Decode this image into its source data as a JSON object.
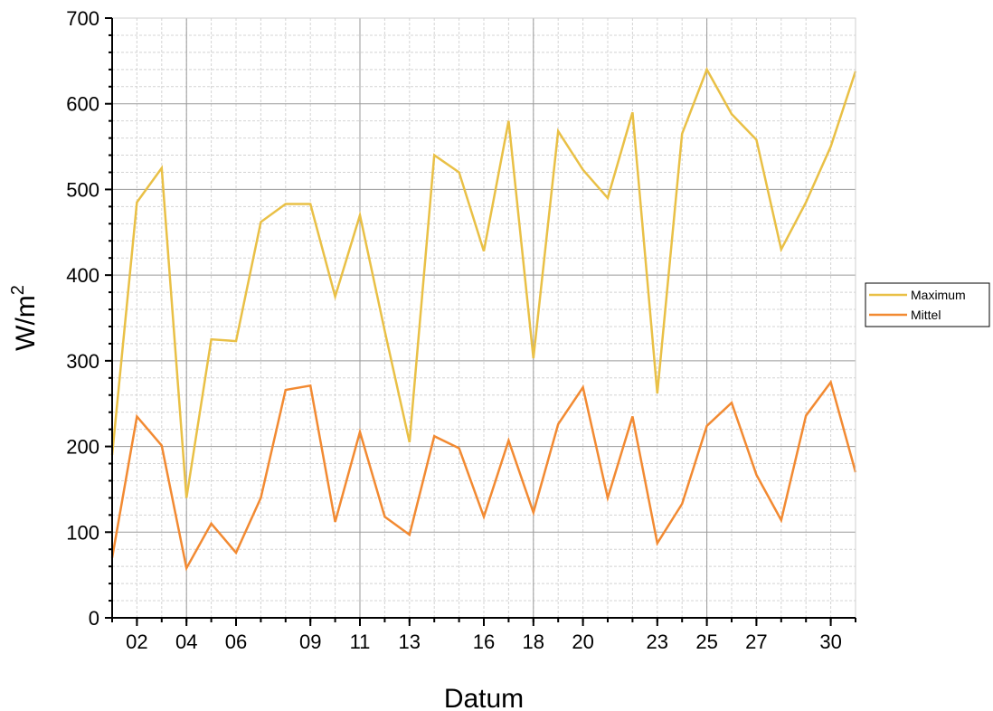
{
  "chart_data": {
    "type": "line",
    "title": "",
    "xlabel": "Datum",
    "ylabel": "W/m",
    "ylabel_superscript": "2",
    "ylim": [
      0,
      700
    ],
    "xlim": [
      1,
      31
    ],
    "yticks": [
      0,
      100,
      200,
      300,
      400,
      500,
      600,
      700
    ],
    "xticks": [
      {
        "x": 2,
        "label": "02"
      },
      {
        "x": 4,
        "label": "04"
      },
      {
        "x": 6,
        "label": "06"
      },
      {
        "x": 9,
        "label": "09"
      },
      {
        "x": 11,
        "label": "11"
      },
      {
        "x": 13,
        "label": "13"
      },
      {
        "x": 16,
        "label": "16"
      },
      {
        "x": 18,
        "label": "18"
      },
      {
        "x": 20,
        "label": "20"
      },
      {
        "x": 23,
        "label": "23"
      },
      {
        "x": 25,
        "label": "25"
      },
      {
        "x": 27,
        "label": "27"
      },
      {
        "x": 30,
        "label": "30"
      }
    ],
    "x": [
      1,
      2,
      3,
      4,
      5,
      6,
      7,
      8,
      9,
      10,
      11,
      12,
      13,
      14,
      15,
      16,
      17,
      18,
      19,
      20,
      21,
      22,
      23,
      24,
      25,
      26,
      27,
      28,
      29,
      30,
      31
    ],
    "series": [
      {
        "name": "Maximum",
        "color": "#E9C046",
        "values": [
          190,
          485,
          525,
          140,
          325,
          323,
          462,
          483,
          483,
          375,
          470,
          335,
          205,
          540,
          520,
          428,
          580,
          303,
          568,
          523,
          490,
          590,
          262,
          565,
          640,
          588,
          558,
          430,
          485,
          550,
          638
        ]
      },
      {
        "name": "Mittel",
        "color": "#F28A32",
        "values": [
          70,
          235,
          201,
          58,
          110,
          76,
          140,
          266,
          271,
          112,
          217,
          118,
          97,
          212,
          198,
          118,
          207,
          123,
          226,
          269,
          140,
          235,
          87,
          133,
          224,
          251,
          167,
          114,
          236,
          275,
          170
        ]
      }
    ],
    "grid": true,
    "legend_position": "right"
  }
}
